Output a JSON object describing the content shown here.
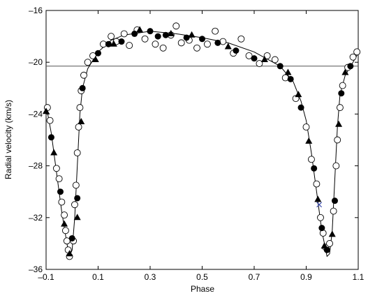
{
  "chart_data": {
    "type": "scatter",
    "x_label": "Phase",
    "y_label": "Radial velocity (km/s)",
    "xlim": [
      -0.1,
      1.1
    ],
    "ylim": [
      -36,
      -16
    ],
    "xticks": [
      {
        "value": -0.1,
        "label": "–0.1"
      },
      0.1,
      0.3,
      0.5,
      0.7,
      0.9,
      1.1
    ],
    "yticks": [
      {
        "value": -16,
        "label": "–16"
      },
      {
        "value": -20,
        "label": "–20"
      },
      {
        "value": -24,
        "label": "–24"
      },
      {
        "value": -28,
        "label": "–28"
      },
      {
        "value": -32,
        "label": "–32"
      },
      {
        "value": -36,
        "label": "–36"
      }
    ],
    "reference_line": {
      "value": -20.3,
      "color": "#555555"
    },
    "curve": {
      "color": "#000000",
      "x": [
        -0.1,
        -0.08,
        -0.06,
        -0.04,
        -0.02,
        -0.01,
        0.0,
        0.01,
        0.02,
        0.03,
        0.04,
        0.06,
        0.1,
        0.15,
        0.2,
        0.3,
        0.4,
        0.5,
        0.6,
        0.7,
        0.8,
        0.85,
        0.88,
        0.9,
        0.92,
        0.94,
        0.96,
        0.98,
        0.99,
        1.0,
        1.01,
        1.02,
        1.03,
        1.05,
        1.08,
        1.1
      ],
      "values": [
        -23.3,
        -25.5,
        -28.5,
        -31.5,
        -34,
        -35,
        -34.5,
        -32,
        -28,
        -24,
        -22,
        -20.5,
        -19.2,
        -18.3,
        -17.9,
        -17.6,
        -17.8,
        -18.1,
        -18.5,
        -19.2,
        -20.3,
        -21.5,
        -23,
        -24.5,
        -27,
        -30,
        -33,
        -35,
        -34.8,
        -33,
        -29,
        -25,
        -22.5,
        -21,
        -20,
        -19.3
      ]
    },
    "series": [
      {
        "marker": "open-circle",
        "color": "#000000",
        "x": [
          -0.095,
          -0.085,
          -0.06,
          -0.05,
          -0.04,
          -0.03,
          -0.025,
          -0.02,
          -0.015,
          -0.01,
          0.005,
          0.01,
          0.015,
          0.02,
          0.025,
          0.03,
          0.035,
          0.045,
          0.06,
          0.08,
          0.12,
          0.15,
          0.17,
          0.2,
          0.22,
          0.25,
          0.28,
          0.32,
          0.35,
          0.38,
          0.4,
          0.42,
          0.45,
          0.48,
          0.52,
          0.55,
          0.58,
          0.62,
          0.65,
          0.68,
          0.72,
          0.75,
          0.78,
          0.82,
          0.86,
          0.9,
          0.92,
          0.94,
          0.955,
          0.965,
          0.975,
          0.99,
          1.005,
          1.015,
          1.02,
          1.03,
          1.04,
          1.06,
          1.08,
          1.095
        ],
        "values": [
          -23.5,
          -24.5,
          -28.2,
          -29,
          -30.8,
          -31.8,
          -33,
          -33.8,
          -34.5,
          -35,
          -33.8,
          -31,
          -29.5,
          -27,
          -25,
          -23.5,
          -22.2,
          -21,
          -20,
          -19.5,
          -18.6,
          -18,
          -18.4,
          -17.8,
          -18.7,
          -17.5,
          -18.2,
          -18.6,
          -18.9,
          -17.9,
          -17.2,
          -18.5,
          -18.3,
          -18.9,
          -18.6,
          -17.6,
          -18.4,
          -19.3,
          -18.2,
          -19.5,
          -20.1,
          -19.5,
          -19.8,
          -21.2,
          -22.8,
          -25,
          -27.5,
          -29.4,
          -32,
          -33.2,
          -34.3,
          -34,
          -31.5,
          -28,
          -26,
          -23.5,
          -21.8,
          -20.4,
          -19.6,
          -19.2
        ]
      },
      {
        "marker": "filled-circle",
        "color": "#000000",
        "x": [
          -0.08,
          -0.045,
          0.0,
          0.02,
          0.04,
          0.1,
          0.14,
          0.19,
          0.24,
          0.3,
          0.33,
          0.36,
          0.44,
          0.5,
          0.56,
          0.63,
          0.7,
          0.8,
          0.84,
          0.88,
          0.93,
          0.96,
          0.98,
          1.01,
          1.035,
          1.07
        ],
        "values": [
          -25.8,
          -30,
          -33.6,
          -30.5,
          -22,
          -19.3,
          -18.6,
          -18.4,
          -17.8,
          -17.6,
          -18,
          -17.9,
          -18.1,
          -18.2,
          -18.5,
          -19.1,
          -19.7,
          -20.3,
          -21.3,
          -23.5,
          -28.2,
          -32.8,
          -34.5,
          -30.7,
          -22.4,
          -20.3
        ]
      },
      {
        "marker": "triangle",
        "color": "#000000",
        "x": [
          -0.1,
          -0.07,
          -0.03,
          -0.01,
          0.02,
          0.035,
          0.09,
          0.16,
          0.26,
          0.38,
          0.46,
          0.6,
          0.74,
          0.83,
          0.87,
          0.91,
          0.945,
          0.97,
          1.0,
          1.025,
          1.05
        ],
        "values": [
          -23.8,
          -27,
          -32.5,
          -34.8,
          -32,
          -24.6,
          -19.8,
          -18.6,
          -17.5,
          -17.8,
          -17.9,
          -18.8,
          -19.8,
          -20.8,
          -22.5,
          -26.1,
          -30.6,
          -34.2,
          -33.3,
          -24.8,
          -20.8
        ]
      },
      {
        "marker": "cross",
        "color": "#3344aa",
        "x": [
          0.95
        ],
        "values": [
          -31
        ]
      }
    ]
  }
}
